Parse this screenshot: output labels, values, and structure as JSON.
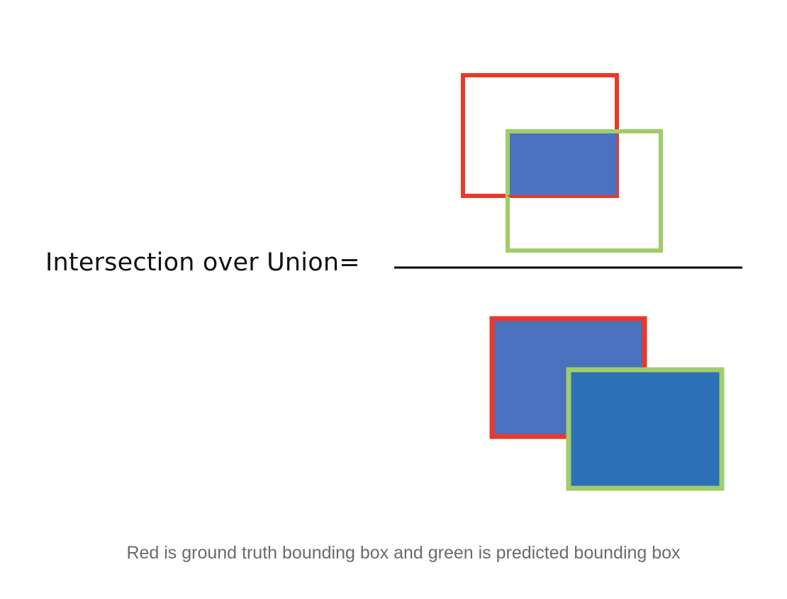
{
  "diagram": {
    "formula_label": "Intersection over Union=",
    "caption": "Red is ground truth bounding box and green is predicted bounding box",
    "colors": {
      "ground_truth": "#e8392a",
      "predicted": "#9fcd6a",
      "intersection_fill": "#4a72be",
      "union_gt_fill": "#4a72be",
      "union_pred_fill": "#2c70b8",
      "fraction_line": "#000000",
      "caption_text": "#6b6b6b"
    }
  }
}
